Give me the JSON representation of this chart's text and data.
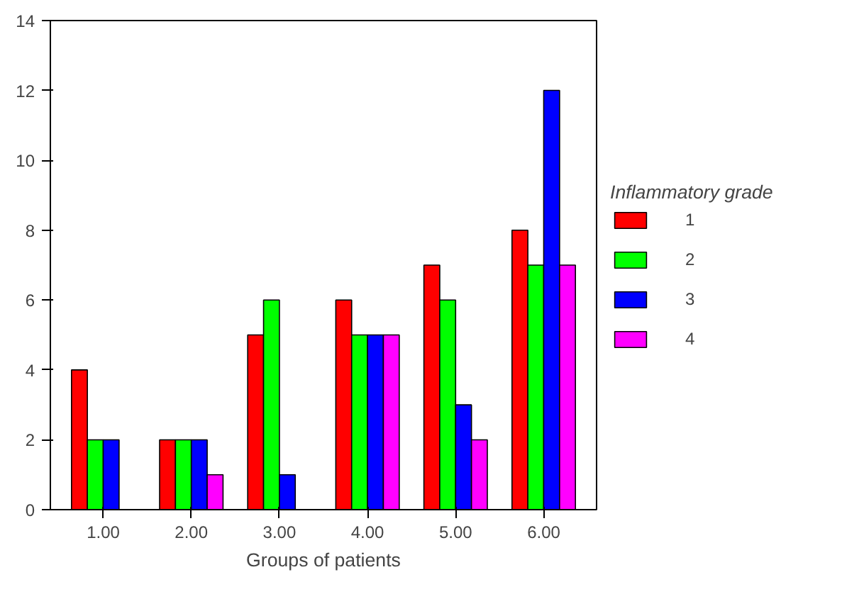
{
  "chart_data": {
    "type": "bar",
    "xlabel": "Groups of patients",
    "legend_title": "Inflammatory grade",
    "categories": [
      "1.00",
      "2.00",
      "3.00",
      "4.00",
      "5.00",
      "6.00"
    ],
    "series": [
      {
        "name": "1",
        "color": "#ff0000",
        "values": [
          4,
          2,
          5,
          6,
          7,
          8
        ]
      },
      {
        "name": "2",
        "color": "#00ff00",
        "values": [
          2,
          2,
          6,
          5,
          6,
          7
        ]
      },
      {
        "name": "3",
        "color": "#0000ff",
        "values": [
          2,
          2,
          1,
          5,
          3,
          12
        ]
      },
      {
        "name": "4",
        "color": "#ff00ff",
        "values": [
          null,
          1,
          null,
          5,
          2,
          7
        ]
      }
    ],
    "ylim": [
      0,
      14
    ],
    "yticks": [
      0,
      2,
      4,
      6,
      8,
      10,
      12,
      14
    ],
    "grid": false,
    "legend": "right"
  }
}
